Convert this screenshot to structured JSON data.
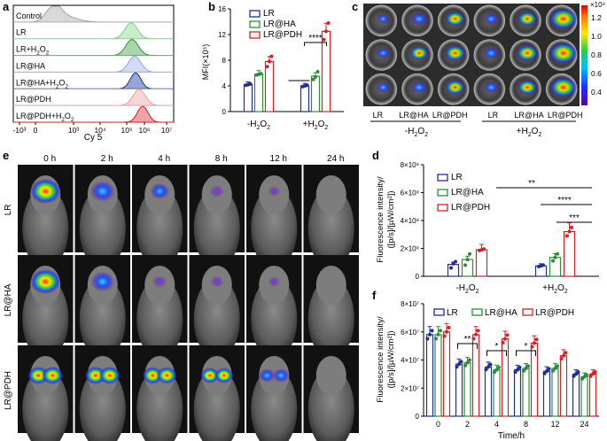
{
  "panels": {
    "a": "a",
    "b": "b",
    "c": "c",
    "d": "d",
    "e": "e",
    "f": "f"
  },
  "panel_a": {
    "rows": [
      {
        "label": "Control",
        "color": "#9e9e9e",
        "light": "#d9d9d9"
      },
      {
        "label": "LR",
        "color": "#7fcf84",
        "light": "#c9ecc9"
      },
      {
        "label": "LR+H2O2",
        "color": "#2e8b3a",
        "light": "#a9d7aa"
      },
      {
        "label": "LR@HA",
        "color": "#8fa3e6",
        "light": "#d2dbf6"
      },
      {
        "label": "LR@HA+H2O2",
        "color": "#1b2f7a",
        "light": "#98a6d6"
      },
      {
        "label": "LR@PDH",
        "color": "#ee9a9a",
        "light": "#f9d5d5"
      },
      {
        "label": "LR@PDH+H2O2",
        "color": "#d81f26",
        "light": "#f3a3a3"
      }
    ],
    "xlabel": "Cy 5",
    "ticks": [
      "-10³",
      "0",
      "10³",
      "10⁴",
      "10⁵",
      "10⁶",
      "10⁷"
    ]
  },
  "chart_data": [
    {
      "id": "b",
      "type": "bar",
      "title": "",
      "ylabel": "MFI(×10⁵)",
      "ylim": [
        0,
        16
      ],
      "yticks": [
        "0",
        "4",
        "8",
        "12",
        "16"
      ],
      "groups": [
        "-H2O2",
        "+H2O2"
      ],
      "series": [
        {
          "name": "LR",
          "color": "#1f2f95",
          "values": [
            4.2,
            4.0
          ],
          "points": [
            [
              4.1,
              4.2,
              4.3
            ],
            [
              3.9,
              4.0,
              4.1
            ]
          ]
        },
        {
          "name": "LR@HA",
          "color": "#2e8b3a",
          "values": [
            5.8,
            5.5
          ],
          "points": [
            [
              5.7,
              5.8,
              5.9
            ],
            [
              5.0,
              5.4,
              6.2
            ]
          ]
        },
        {
          "name": "LR@PDH",
          "color": "#d81f26",
          "values": [
            7.8,
            12.5
          ],
          "points": [
            [
              7.0,
              7.8,
              8.6
            ],
            [
              11.2,
              12.5,
              13.8
            ]
          ]
        }
      ],
      "significance": "****"
    },
    {
      "id": "d",
      "type": "bar",
      "ylabel": "Fluorescence intensity/ ([p/s]/[µW/cm²])",
      "ylim": [
        0,
        8
      ],
      "yticks": [
        "0",
        "2×10⁸",
        "4×10⁸",
        "6×10⁸",
        "8×10⁸"
      ],
      "groups": [
        "-H2O2",
        "+H2O2"
      ],
      "series": [
        {
          "name": "LR",
          "color": "#1f2f95",
          "values": [
            0.85,
            0.75
          ],
          "points": [
            [
              0.6,
              0.9,
              1.05
            ],
            [
              0.7,
              0.75,
              0.8
            ]
          ]
        },
        {
          "name": "LR@HA",
          "color": "#2e8b3a",
          "values": [
            1.2,
            1.35
          ],
          "points": [
            [
              0.8,
              1.2,
              1.6
            ],
            [
              1.1,
              1.35,
              1.6
            ]
          ]
        },
        {
          "name": "LR@PDH",
          "color": "#d81f26",
          "values": [
            1.9,
            3.2
          ],
          "points": [
            [
              1.85,
              1.9,
              1.95
            ],
            [
              2.9,
              3.2,
              3.5
            ]
          ]
        }
      ],
      "significance": [
        "**",
        "****",
        "***"
      ]
    },
    {
      "id": "f",
      "type": "bar",
      "xlabel": "Time/h",
      "ylabel": "Fluorescence intensity/ ([p/s]/[µW/cm²])",
      "ylim": [
        0,
        8
      ],
      "yticks": [
        "0",
        "2×10⁷",
        "4×10⁷",
        "6×10⁷",
        "8×10⁷"
      ],
      "categories": [
        "0",
        "2",
        "4",
        "8",
        "12",
        "24"
      ],
      "series": [
        {
          "name": "LR",
          "color": "#1f2f95",
          "values": [
            5.8,
            3.7,
            3.5,
            3.3,
            3.2,
            3.0
          ]
        },
        {
          "name": "LR@HA",
          "color": "#2e8b3a",
          "values": [
            5.8,
            3.8,
            3.3,
            3.4,
            3.4,
            2.8
          ]
        },
        {
          "name": "LR@PDH",
          "color": "#d81f26",
          "values": [
            6.0,
            5.8,
            5.5,
            5.2,
            4.3,
            3.0
          ]
        }
      ],
      "significance": [
        "**",
        "*",
        "*"
      ]
    }
  ],
  "panel_c": {
    "colorbar_ticks": [
      "1.2",
      "1.0",
      "0.8",
      "0.6",
      "0.4"
    ],
    "colorbar_exp": "×10⁹",
    "col_labels": [
      "LR",
      "LR@HA",
      "LR@PDH",
      "LR",
      "LR@HA",
      "LR@PDH"
    ],
    "group_labels": [
      "-H2O2",
      "+H2O2"
    ]
  },
  "panel_e": {
    "times": [
      "0 h",
      "2 h",
      "4 h",
      "8 h",
      "12 h",
      "24 h"
    ],
    "rows": [
      "LR",
      "LR@HA",
      "LR@PDH"
    ]
  },
  "legend": {
    "lr": "LR",
    "lrha": "LR@HA",
    "lrpdh": "LR@PDH"
  }
}
